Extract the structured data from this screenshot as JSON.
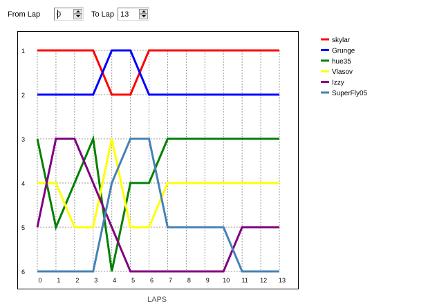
{
  "controls": {
    "from_label": "From Lap",
    "from_value": "0",
    "to_label": "To Lap",
    "to_value": "13"
  },
  "chart_data": {
    "type": "line",
    "title": "",
    "xlabel": "LAPS",
    "ylabel": "",
    "x": [
      0,
      1,
      2,
      3,
      4,
      5,
      6,
      7,
      8,
      9,
      10,
      11,
      12,
      13
    ],
    "xlim": [
      0,
      13
    ],
    "ylim": [
      1,
      6
    ],
    "y_inverted": true,
    "y_ticks": [
      1,
      2,
      3,
      4,
      5,
      6
    ],
    "grid": true,
    "legend_position": "right",
    "series": [
      {
        "name": "skylar",
        "color": "#ff0000",
        "values": [
          1,
          1,
          1,
          1,
          2,
          2,
          1,
          1,
          1,
          1,
          1,
          1,
          1,
          1
        ]
      },
      {
        "name": "Grunge",
        "color": "#0000ff",
        "values": [
          2,
          2,
          2,
          2,
          1,
          1,
          2,
          2,
          2,
          2,
          2,
          2,
          2,
          2
        ]
      },
      {
        "name": "hue35",
        "color": "#008000",
        "values": [
          3,
          5,
          4,
          3,
          6,
          4,
          4,
          3,
          3,
          3,
          3,
          3,
          3,
          3
        ]
      },
      {
        "name": "Vlasov",
        "color": "#ffff00",
        "values": [
          4,
          4,
          5,
          5,
          3,
          5,
          5,
          4,
          4,
          4,
          4,
          4,
          4,
          4
        ]
      },
      {
        "name": "Izzy",
        "color": "#800080",
        "values": [
          5,
          3,
          3,
          4,
          5,
          6,
          6,
          6,
          6,
          6,
          6,
          5,
          5,
          5
        ]
      },
      {
        "name": "SuperFly05",
        "color": "#4682b4",
        "values": [
          6,
          6,
          6,
          6,
          4,
          3,
          3,
          5,
          5,
          5,
          5,
          6,
          6,
          6
        ]
      }
    ]
  }
}
